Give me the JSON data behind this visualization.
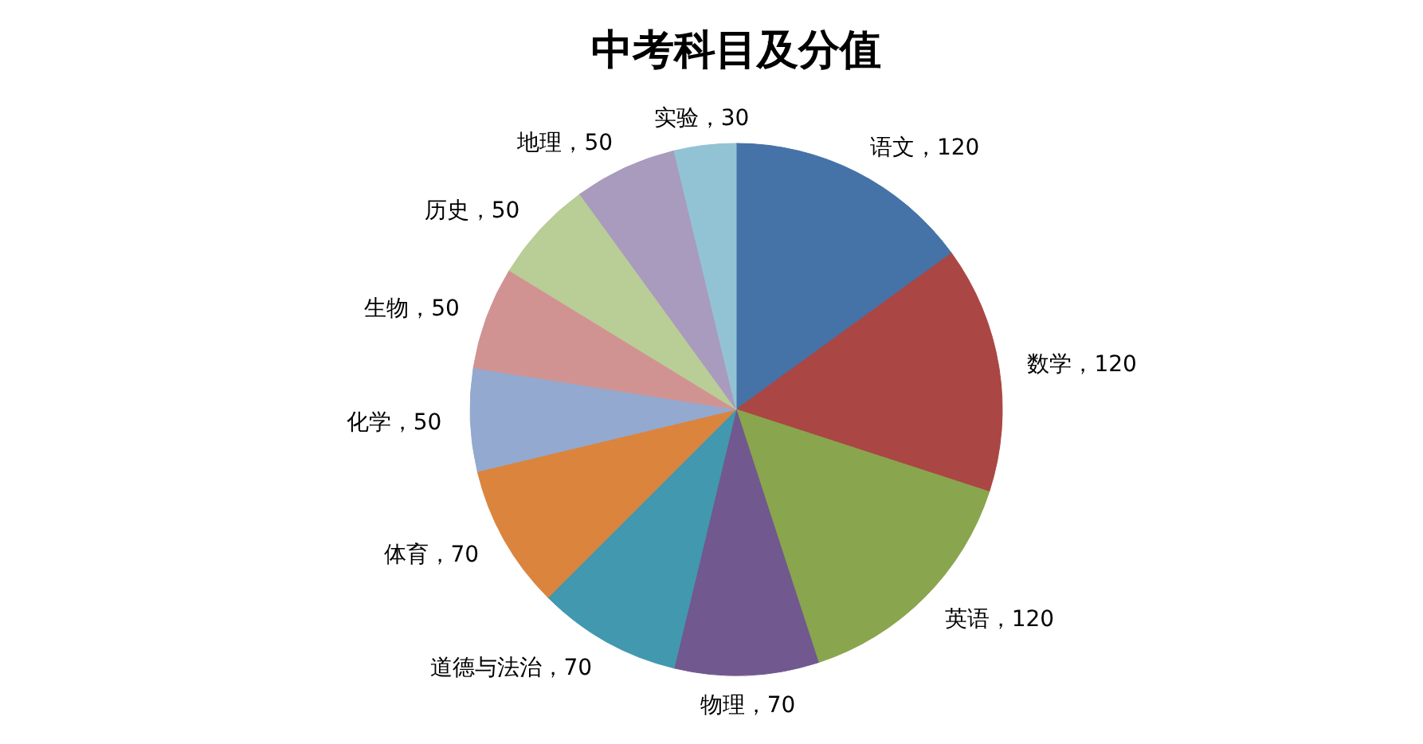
{
  "chart_data": {
    "type": "pie",
    "title": "中考科目及分值",
    "categories": [
      "语文",
      "数学",
      "英语",
      "物理",
      "道德与法治",
      "体育",
      "化学",
      "生物",
      "历史",
      "地理",
      "实验"
    ],
    "values": [
      120,
      120,
      120,
      70,
      70,
      70,
      50,
      50,
      50,
      50,
      30
    ],
    "colors": [
      "#4572a7",
      "#aa4643",
      "#89a54e",
      "#71588f",
      "#4198af",
      "#db843d",
      "#93a9cf",
      "#d19392",
      "#b9cd96",
      "#a99bbd",
      "#92c3d5"
    ],
    "value_labels": [
      "，120",
      "，120",
      "，120",
      "，70",
      "，70",
      "，70",
      "，50",
      "，50",
      "，50",
      "，50",
      "，30"
    ],
    "legend": false
  }
}
